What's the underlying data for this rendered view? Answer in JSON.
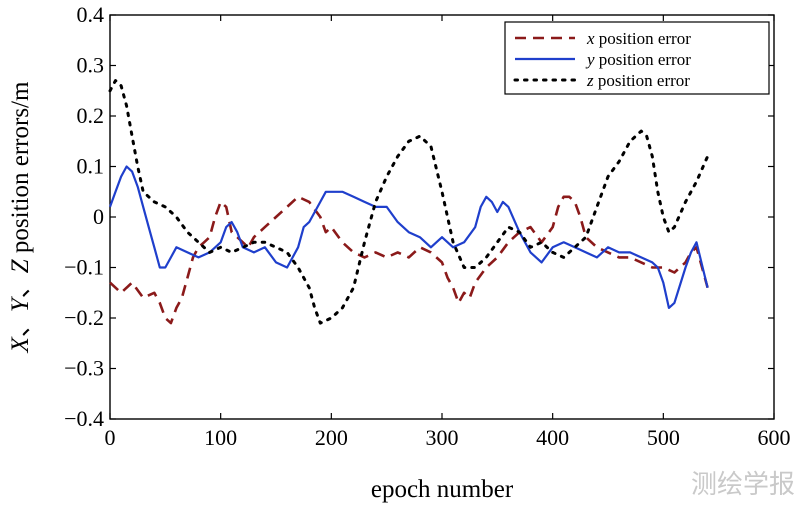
{
  "chart_data": {
    "type": "line",
    "title": "",
    "xlabel": "epoch number",
    "ylabel": "X、Y、Z position errors/m",
    "ylabel_parts": {
      "x": "X",
      "sep1": "、",
      "y": "Y",
      "sep2": "、",
      "z": "Z",
      "rest": " position errors/m"
    },
    "xlim": [
      0,
      600
    ],
    "ylim": [
      -0.4,
      0.4
    ],
    "xticks": [
      0,
      100,
      200,
      300,
      400,
      500,
      600
    ],
    "yticks": [
      -0.4,
      -0.3,
      -0.2,
      -0.1,
      0,
      0.1,
      0.2,
      0.3,
      0.4
    ],
    "xtick_labels": [
      "0",
      "100",
      "200",
      "300",
      "400",
      "500",
      "600"
    ],
    "ytick_labels": [
      "−0.4",
      "−0.3",
      "−0.2",
      "−0.1",
      "0",
      "0.1",
      "0.2",
      "0.3",
      "0.4"
    ],
    "grid": false,
    "legend_position": "top-right",
    "series": [
      {
        "name": "x position error",
        "legend_var": "x",
        "legend_rest": " position error",
        "color": "#8b1a1a",
        "style": "dashed",
        "x": [
          0,
          10,
          20,
          30,
          40,
          45,
          50,
          55,
          60,
          65,
          70,
          75,
          80,
          85,
          90,
          95,
          100,
          105,
          110,
          115,
          120,
          125,
          130,
          140,
          150,
          160,
          170,
          180,
          190,
          195,
          200,
          210,
          220,
          230,
          240,
          250,
          260,
          270,
          280,
          290,
          300,
          305,
          310,
          315,
          320,
          325,
          330,
          340,
          350,
          360,
          370,
          380,
          390,
          400,
          405,
          410,
          415,
          420,
          425,
          430,
          440,
          450,
          460,
          470,
          480,
          490,
          500,
          510,
          520,
          525,
          530,
          540
        ],
        "values": [
          -0.13,
          -0.15,
          -0.13,
          -0.16,
          -0.15,
          -0.17,
          -0.2,
          -0.21,
          -0.18,
          -0.16,
          -0.12,
          -0.08,
          -0.06,
          -0.05,
          -0.04,
          0.0,
          0.03,
          0.02,
          -0.03,
          -0.04,
          -0.05,
          -0.06,
          -0.04,
          -0.02,
          0.0,
          0.02,
          0.04,
          0.03,
          0.0,
          -0.03,
          -0.02,
          -0.05,
          -0.07,
          -0.08,
          -0.07,
          -0.08,
          -0.07,
          -0.08,
          -0.06,
          -0.07,
          -0.09,
          -0.12,
          -0.14,
          -0.17,
          -0.15,
          -0.16,
          -0.13,
          -0.1,
          -0.08,
          -0.05,
          -0.03,
          -0.02,
          -0.05,
          -0.02,
          0.02,
          0.04,
          0.04,
          0.03,
          0.0,
          -0.04,
          -0.06,
          -0.07,
          -0.08,
          -0.08,
          -0.09,
          -0.1,
          -0.1,
          -0.11,
          -0.09,
          -0.07,
          -0.06,
          -0.14
        ]
      },
      {
        "name": "y position error",
        "legend_var": "y",
        "legend_rest": " position error",
        "color": "#1f3fcc",
        "style": "solid",
        "x": [
          0,
          5,
          10,
          15,
          20,
          25,
          30,
          35,
          40,
          45,
          50,
          55,
          60,
          70,
          80,
          90,
          100,
          105,
          110,
          115,
          120,
          130,
          140,
          150,
          160,
          170,
          175,
          180,
          190,
          195,
          200,
          210,
          220,
          230,
          240,
          250,
          260,
          270,
          280,
          290,
          300,
          310,
          320,
          330,
          335,
          340,
          345,
          350,
          355,
          360,
          370,
          380,
          390,
          400,
          410,
          420,
          430,
          440,
          450,
          460,
          470,
          480,
          490,
          495,
          500,
          505,
          510,
          520,
          525,
          530,
          540
        ],
        "values": [
          0.02,
          0.05,
          0.08,
          0.1,
          0.09,
          0.06,
          0.02,
          -0.02,
          -0.06,
          -0.1,
          -0.1,
          -0.08,
          -0.06,
          -0.07,
          -0.08,
          -0.07,
          -0.05,
          -0.02,
          -0.01,
          -0.03,
          -0.06,
          -0.07,
          -0.06,
          -0.09,
          -0.1,
          -0.06,
          -0.02,
          -0.01,
          0.03,
          0.05,
          0.05,
          0.05,
          0.04,
          0.03,
          0.02,
          0.02,
          -0.01,
          -0.03,
          -0.04,
          -0.06,
          -0.04,
          -0.06,
          -0.05,
          -0.02,
          0.02,
          0.04,
          0.03,
          0.01,
          0.03,
          0.02,
          -0.03,
          -0.07,
          -0.09,
          -0.06,
          -0.05,
          -0.06,
          -0.07,
          -0.08,
          -0.06,
          -0.07,
          -0.07,
          -0.08,
          -0.09,
          -0.1,
          -0.13,
          -0.18,
          -0.17,
          -0.1,
          -0.07,
          -0.05,
          -0.14
        ]
      },
      {
        "name": "z position error",
        "legend_var": "z",
        "legend_rest": " position error",
        "color": "#000000",
        "style": "dotted",
        "x": [
          0,
          5,
          10,
          15,
          20,
          25,
          30,
          40,
          50,
          60,
          70,
          80,
          90,
          100,
          110,
          120,
          130,
          140,
          150,
          160,
          170,
          180,
          185,
          190,
          200,
          210,
          220,
          230,
          240,
          250,
          260,
          270,
          280,
          290,
          300,
          310,
          320,
          330,
          340,
          350,
          360,
          370,
          380,
          390,
          400,
          410,
          420,
          430,
          440,
          450,
          460,
          470,
          480,
          485,
          490,
          495,
          500,
          505,
          510,
          520,
          530,
          540
        ],
        "values": [
          0.25,
          0.27,
          0.26,
          0.22,
          0.16,
          0.1,
          0.05,
          0.03,
          0.02,
          0.0,
          -0.03,
          -0.05,
          -0.07,
          -0.06,
          -0.07,
          -0.06,
          -0.05,
          -0.05,
          -0.06,
          -0.07,
          -0.1,
          -0.14,
          -0.18,
          -0.21,
          -0.2,
          -0.18,
          -0.14,
          -0.05,
          0.03,
          0.08,
          0.12,
          0.15,
          0.16,
          0.14,
          0.05,
          -0.05,
          -0.1,
          -0.1,
          -0.08,
          -0.05,
          -0.02,
          -0.03,
          -0.06,
          -0.05,
          -0.07,
          -0.08,
          -0.06,
          -0.04,
          0.02,
          0.08,
          0.11,
          0.15,
          0.17,
          0.16,
          0.12,
          0.05,
          0.0,
          -0.03,
          -0.02,
          0.03,
          0.07,
          0.12
        ]
      }
    ]
  },
  "watermark": "测绘学报"
}
